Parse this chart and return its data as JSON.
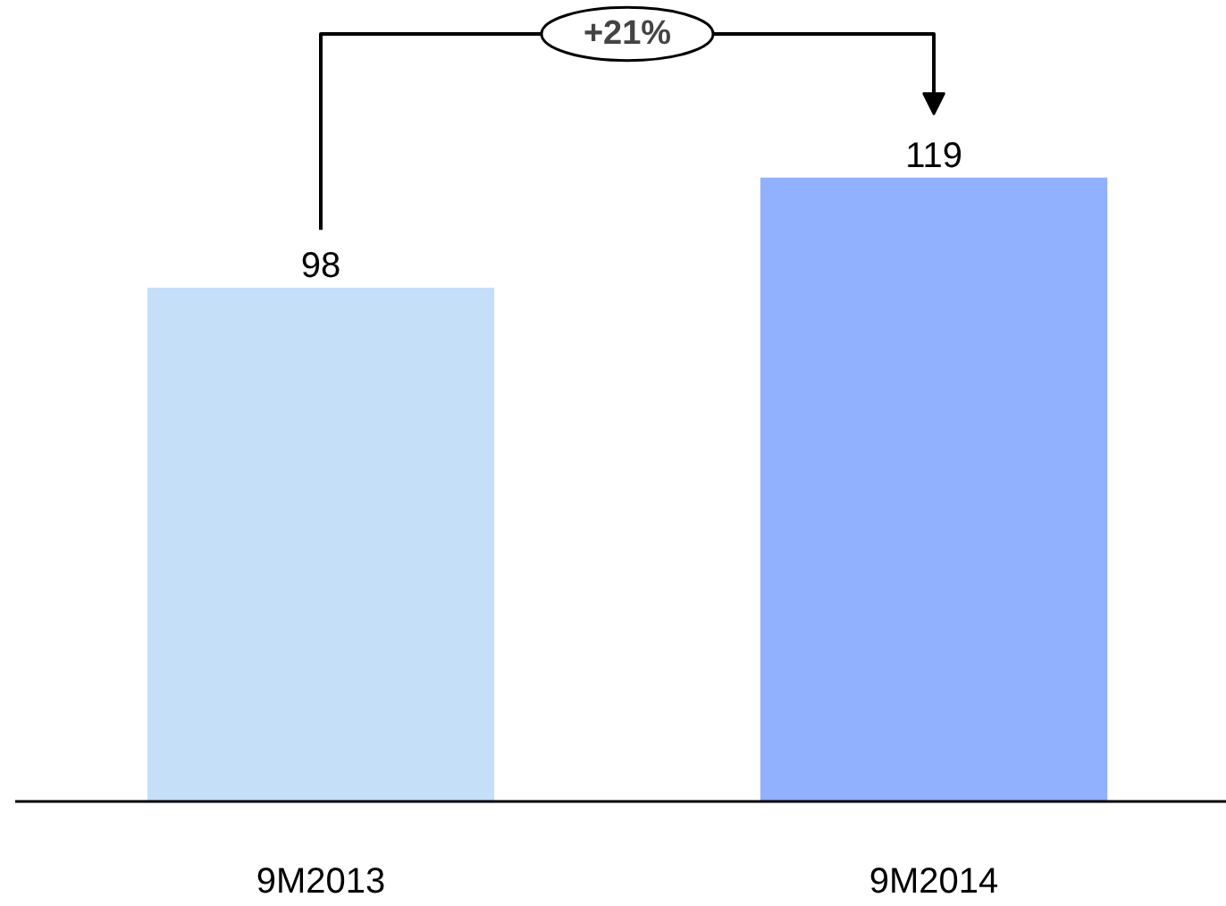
{
  "chart_data": {
    "type": "bar",
    "categories": [
      "9M2013",
      "9M2014"
    ],
    "values": [
      98,
      119
    ],
    "colors": [
      "#c6dff8",
      "#91b0fd"
    ],
    "data_labels": true,
    "tick_labels": "x",
    "annotations": [
      "+21%"
    ]
  }
}
